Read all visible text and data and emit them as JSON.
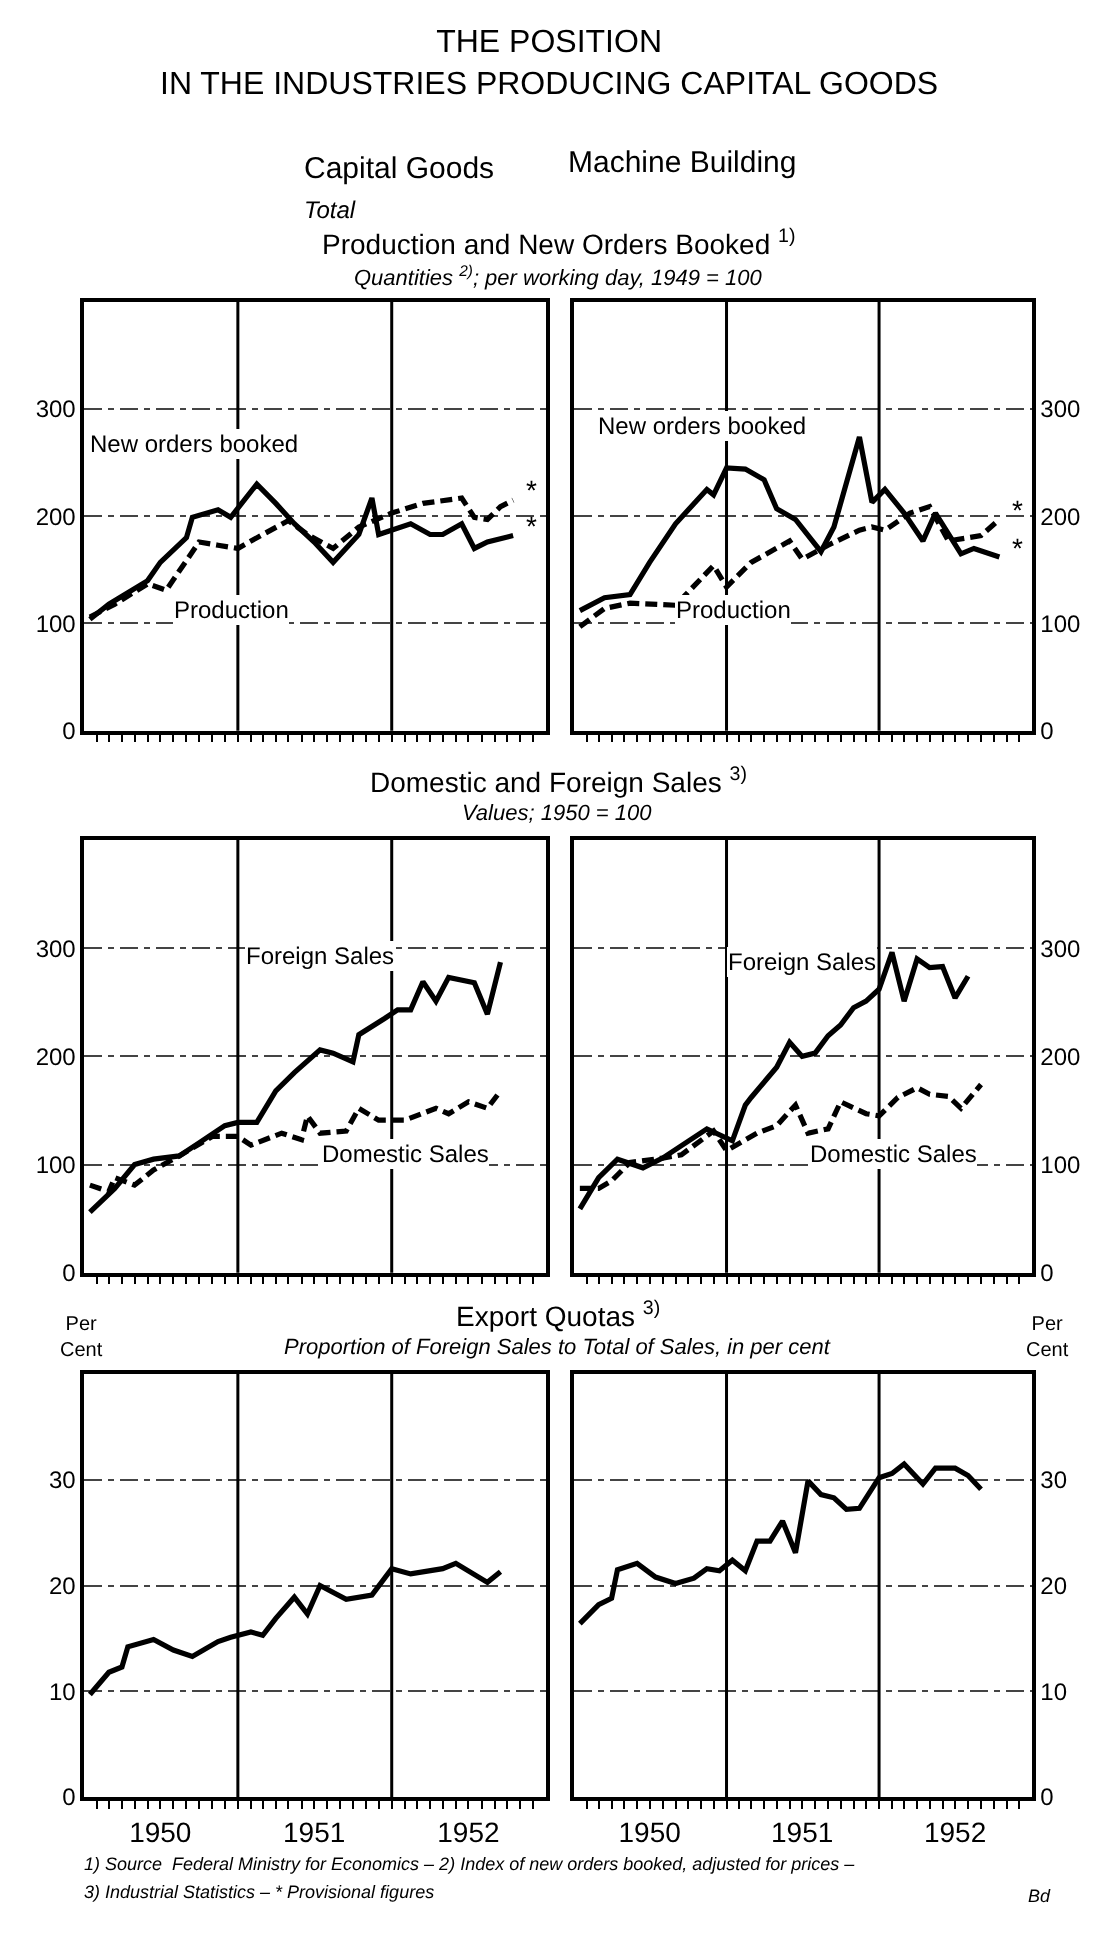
{
  "chart_data": [
    {
      "type": "other",
      "title": "THE POSITION\nIN THE INDUSTRIES PRODUCING CAPITAL GOODS",
      "annotations": [
        "Capital Goods",
        "Total",
        "Machine Building"
      ]
    },
    {
      "type": "line",
      "title": "Production and New Orders Booked $^{1)}$",
      "subtitle": "Quantities $^{2)}$; per working day, 1949 = 100",
      "grid": "y",
      "tick_labels": "y",
      "xlim": [
        "1950-01-01",
        "1953-01-01"
      ],
      "ylim": [
        0,
        400
      ],
      "yticks": [
        0,
        100,
        200,
        300
      ],
      "xticks": [
        {
          "value": "1950-02-01",
          "label": null
        },
        {
          "value": "1950-03-01",
          "label": null
        },
        {
          "value": "1950-04-01",
          "label": null
        },
        {
          "value": "1950-05-01",
          "label": null
        },
        {
          "value": "1950-06-01",
          "label": null
        },
        {
          "value": "1950-07-01",
          "label": null
        },
        {
          "value": "1950-08-01",
          "label": null
        },
        {
          "value": "1950-09-01",
          "label": null
        },
        {
          "value": "1950-10-01",
          "label": null
        },
        {
          "value": "1950-11-01",
          "label": null
        },
        {
          "value": "1950-12-01",
          "label": null
        },
        {
          "value": "1951-01-01",
          "label": null
        },
        {
          "value": "1951-02-01",
          "label": null
        },
        {
          "value": "1951-03-01",
          "label": null
        },
        {
          "value": "1951-04-01",
          "label": null
        },
        {
          "value": "1951-05-01",
          "label": null
        },
        {
          "value": "1951-06-01",
          "label": null
        },
        {
          "value": "1951-07-01",
          "label": null
        },
        {
          "value": "1951-08-01",
          "label": null
        },
        {
          "value": "1951-09-01",
          "label": null
        },
        {
          "value": "1951-10-01",
          "label": null
        },
        {
          "value": "1951-11-01",
          "label": null
        },
        {
          "value": "1951-12-01",
          "label": null
        },
        {
          "value": "1952-01-01",
          "label": null
        },
        {
          "value": "1952-02-01",
          "label": null
        },
        {
          "value": "1952-03-01",
          "label": null
        },
        {
          "value": "1952-04-01",
          "label": null
        },
        {
          "value": "1952-05-01",
          "label": null
        },
        {
          "value": "1952-06-01",
          "label": null
        },
        {
          "value": "1952-07-01",
          "label": null
        },
        {
          "value": "1952-08-01",
          "label": null
        },
        {
          "value": "1952-09-01",
          "label": null
        },
        {
          "value": "1952-10-01",
          "label": null
        },
        {
          "value": "1952-11-01",
          "label": null
        },
        {
          "value": "1952-12-01",
          "label": null
        }
      ],
      "ref_lines": [
        {
          "axis": "x",
          "value": "1951-01-01",
          "color": "#000000"
        },
        {
          "axis": "x",
          "value": "1952-01-01",
          "color": "#000000"
        }
      ],
      "series": [
        {
          "name": "New orders booked",
          "color": "#000000",
          "line_style": "solid",
          "x": [
            "1950-01-15",
            "1950-03-01",
            "1950-06-01",
            "1950-07-01",
            "1950-09-01",
            "1950-09-15",
            "1950-11-15",
            "1950-12-15",
            "1951-02-15",
            "1951-04-01",
            "1951-05-15",
            "1951-07-01",
            "1951-08-15",
            "1951-10-15",
            "1951-11-15",
            "1951-12-01",
            "1952-02-15",
            "1952-04-01",
            "1952-05-01",
            "1952-06-15",
            "1952-07-15",
            "1952-08-15",
            "1952-10-15"
          ],
          "values": [
            104,
            118,
            140,
            157,
            180,
            199,
            206,
            199,
            230,
            212,
            193,
            176,
            157,
            183,
            217,
            183,
            193,
            183,
            183,
            193,
            170,
            176,
            182
          ]
        },
        {
          "name": "Production",
          "color": "#000000",
          "line_style": "dashed",
          "x": [
            "1950-01-15",
            "1950-03-15",
            "1950-06-01",
            "1950-07-15",
            "1950-10-01",
            "1950-11-15",
            "1951-01-01",
            "1951-03-01",
            "1951-05-01",
            "1951-06-15",
            "1951-08-15",
            "1951-10-15",
            "1952-01-01",
            "1952-03-15",
            "1952-06-15",
            "1952-07-15",
            "1952-08-15",
            "1952-09-15",
            "1952-10-15"
          ],
          "values": [
            106,
            118,
            137,
            131,
            176,
            173,
            170,
            183,
            196,
            183,
            170,
            190,
            203,
            212,
            217,
            199,
            197,
            209,
            215
          ]
        }
      ],
      "annotations": [
        {
          "text": "*",
          "x": "1952-10-15",
          "y": 215
        },
        {
          "text": "*",
          "x": "1952-10-15",
          "y": 182
        }
      ]
    },
    {
      "type": "line",
      "grid": "y",
      "tick_labels": "y",
      "xlim": [
        "1950-01-01",
        "1953-01-01"
      ],
      "ylim": [
        0,
        400
      ],
      "yticks": [
        0,
        100,
        200,
        300
      ],
      "xticks": [
        {
          "value": "1950-02-01",
          "label": null
        },
        {
          "value": "1950-03-01",
          "label": null
        },
        {
          "value": "1950-04-01",
          "label": null
        },
        {
          "value": "1950-05-01",
          "label": null
        },
        {
          "value": "1950-06-01",
          "label": null
        },
        {
          "value": "1950-07-01",
          "label": null
        },
        {
          "value": "1950-08-01",
          "label": null
        },
        {
          "value": "1950-09-01",
          "label": null
        },
        {
          "value": "1950-10-01",
          "label": null
        },
        {
          "value": "1950-11-01",
          "label": null
        },
        {
          "value": "1950-12-01",
          "label": null
        },
        {
          "value": "1951-01-01",
          "label": null
        },
        {
          "value": "1951-02-01",
          "label": null
        },
        {
          "value": "1951-03-01",
          "label": null
        },
        {
          "value": "1951-04-01",
          "label": null
        },
        {
          "value": "1951-05-01",
          "label": null
        },
        {
          "value": "1951-06-01",
          "label": null
        },
        {
          "value": "1951-07-01",
          "label": null
        },
        {
          "value": "1951-08-01",
          "label": null
        },
        {
          "value": "1951-09-01",
          "label": null
        },
        {
          "value": "1951-10-01",
          "label": null
        },
        {
          "value": "1951-11-01",
          "label": null
        },
        {
          "value": "1951-12-01",
          "label": null
        },
        {
          "value": "1952-01-01",
          "label": null
        },
        {
          "value": "1952-02-01",
          "label": null
        },
        {
          "value": "1952-03-01",
          "label": null
        },
        {
          "value": "1952-04-01",
          "label": null
        },
        {
          "value": "1952-05-01",
          "label": null
        },
        {
          "value": "1952-06-01",
          "label": null
        },
        {
          "value": "1952-07-01",
          "label": null
        },
        {
          "value": "1952-08-01",
          "label": null
        },
        {
          "value": "1952-09-01",
          "label": null
        },
        {
          "value": "1952-10-01",
          "label": null
        },
        {
          "value": "1952-11-01",
          "label": null
        },
        {
          "value": "1952-12-01",
          "label": null
        }
      ],
      "ref_lines": [
        {
          "axis": "x",
          "value": "1951-01-01",
          "color": "#000000"
        },
        {
          "axis": "x",
          "value": "1952-01-01",
          "color": "#000000"
        }
      ],
      "series": [
        {
          "name": "New orders booked",
          "color": "#000000",
          "line_style": "solid",
          "x": [
            "1950-01-15",
            "1950-03-15",
            "1950-05-15",
            "1950-07-01",
            "1950-09-01",
            "1950-11-15",
            "1950-12-01",
            "1951-01-01",
            "1951-02-15",
            "1951-04-01",
            "1951-05-01",
            "1951-06-15",
            "1951-08-15",
            "1951-09-15",
            "1951-11-15",
            "1951-12-15",
            "1952-01-15",
            "1952-03-01",
            "1952-04-15",
            "1952-05-15",
            "1952-07-15",
            "1952-08-15",
            "1952-10-15"
          ],
          "values": [
            112,
            124,
            127,
            157,
            193,
            225,
            220,
            245,
            244,
            234,
            207,
            197,
            167,
            190,
            274,
            213,
            225,
            203,
            177,
            203,
            165,
            170,
            162
          ]
        },
        {
          "name": "Production",
          "color": "#000000",
          "line_style": "dashed",
          "x": [
            "1950-01-15",
            "1950-03-15",
            "1950-05-15",
            "1950-09-01",
            "1950-12-01",
            "1951-01-01",
            "1951-03-01",
            "1951-06-01",
            "1951-07-01",
            "1951-09-01",
            "1951-11-15",
            "1951-12-15",
            "1952-01-15",
            "1952-03-15",
            "1952-05-01",
            "1952-06-15",
            "1952-09-01",
            "1952-10-15"
          ],
          "values": [
            97,
            114,
            119,
            117,
            154,
            134,
            157,
            177,
            160,
            173,
            187,
            190,
            187,
            203,
            209,
            177,
            182,
            197
          ]
        }
      ],
      "annotations": [
        {
          "text": "*",
          "x": "1952-10-15",
          "y": 197
        },
        {
          "text": "*",
          "x": "1952-10-15",
          "y": 162
        }
      ]
    },
    {
      "type": "line",
      "title": "Domestic and Foreign Sales $^{3)}$",
      "subtitle": "Values; 1950 = 100",
      "grid": "y",
      "tick_labels": "y",
      "xlim": [
        "1950-01-01",
        "1953-01-01"
      ],
      "ylim": [
        0,
        400
      ],
      "yticks": [
        0,
        100,
        200,
        300
      ],
      "xticks": [
        {
          "value": "1950-02-01",
          "label": null
        },
        {
          "value": "1950-03-01",
          "label": null
        },
        {
          "value": "1950-04-01",
          "label": null
        },
        {
          "value": "1950-05-01",
          "label": null
        },
        {
          "value": "1950-06-01",
          "label": null
        },
        {
          "value": "1950-07-01",
          "label": null
        },
        {
          "value": "1950-08-01",
          "label": null
        },
        {
          "value": "1950-09-01",
          "label": null
        },
        {
          "value": "1950-10-01",
          "label": null
        },
        {
          "value": "1950-11-01",
          "label": null
        },
        {
          "value": "1950-12-01",
          "label": null
        },
        {
          "value": "1951-01-01",
          "label": null
        },
        {
          "value": "1951-02-01",
          "label": null
        },
        {
          "value": "1951-03-01",
          "label": null
        },
        {
          "value": "1951-04-01",
          "label": null
        },
        {
          "value": "1951-05-01",
          "label": null
        },
        {
          "value": "1951-06-01",
          "label": null
        },
        {
          "value": "1951-07-01",
          "label": null
        },
        {
          "value": "1951-08-01",
          "label": null
        },
        {
          "value": "1951-09-01",
          "label": null
        },
        {
          "value": "1951-10-01",
          "label": null
        },
        {
          "value": "1951-11-01",
          "label": null
        },
        {
          "value": "1951-12-01",
          "label": null
        },
        {
          "value": "1952-01-01",
          "label": null
        },
        {
          "value": "1952-02-01",
          "label": null
        },
        {
          "value": "1952-03-01",
          "label": null
        },
        {
          "value": "1952-04-01",
          "label": null
        },
        {
          "value": "1952-05-01",
          "label": null
        },
        {
          "value": "1952-06-01",
          "label": null
        },
        {
          "value": "1952-07-01",
          "label": null
        },
        {
          "value": "1952-08-01",
          "label": null
        },
        {
          "value": "1952-09-01",
          "label": null
        },
        {
          "value": "1952-10-01",
          "label": null
        },
        {
          "value": "1952-11-01",
          "label": null
        },
        {
          "value": "1952-12-01",
          "label": null
        }
      ],
      "ref_lines": [
        {
          "axis": "x",
          "value": "1951-01-01",
          "color": "#000000"
        },
        {
          "axis": "x",
          "value": "1952-01-01",
          "color": "#000000"
        }
      ],
      "series": [
        {
          "name": "Foreign Sales",
          "color": "#000000",
          "line_style": "solid",
          "x": [
            "1950-01-15",
            "1950-03-15",
            "1950-05-01",
            "1950-06-15",
            "1950-08-15",
            "1950-10-01",
            "1950-12-01",
            "1951-01-01",
            "1951-02-15",
            "1951-04-01",
            "1951-05-15",
            "1951-07-15",
            "1951-08-15",
            "1951-10-01",
            "1951-10-15",
            "1951-12-15",
            "1952-01-15",
            "1952-02-15",
            "1952-03-15",
            "1952-04-15",
            "1952-05-15",
            "1952-07-15",
            "1952-08-15",
            "1952-09-15"
          ],
          "values": [
            56,
            78,
            100,
            105,
            108,
            120,
            136,
            139,
            139,
            168,
            185,
            206,
            203,
            195,
            220,
            235,
            243,
            243,
            269,
            251,
            273,
            268,
            239,
            287
          ]
        },
        {
          "name": "Domestic Sales",
          "color": "#000000",
          "line_style": "dashed",
          "x": [
            "1950-01-15",
            "1950-03-01",
            "1950-03-15",
            "1950-05-01",
            "1950-06-15",
            "1950-08-15",
            "1950-11-01",
            "1951-01-01",
            "1951-02-01",
            "1951-04-15",
            "1951-06-01",
            "1951-06-15",
            "1951-07-15",
            "1951-09-15",
            "1951-10-15",
            "1951-12-01",
            "1952-02-01",
            "1952-04-15",
            "1952-05-15",
            "1952-07-01",
            "1952-08-15",
            "1952-09-15"
          ],
          "values": [
            81,
            75,
            88,
            81,
            95,
            108,
            126,
            126,
            118,
            129,
            123,
            145,
            129,
            131,
            152,
            141,
            141,
            152,
            147,
            158,
            152,
            168
          ]
        }
      ]
    },
    {
      "type": "line",
      "grid": "y",
      "tick_labels": "y",
      "xlim": [
        "1950-01-01",
        "1953-01-01"
      ],
      "ylim": [
        0,
        400
      ],
      "yticks": [
        0,
        100,
        200,
        300
      ],
      "xticks": [
        {
          "value": "1950-02-01",
          "label": null
        },
        {
          "value": "1950-03-01",
          "label": null
        },
        {
          "value": "1950-04-01",
          "label": null
        },
        {
          "value": "1950-05-01",
          "label": null
        },
        {
          "value": "1950-06-01",
          "label": null
        },
        {
          "value": "1950-07-01",
          "label": null
        },
        {
          "value": "1950-08-01",
          "label": null
        },
        {
          "value": "1950-09-01",
          "label": null
        },
        {
          "value": "1950-10-01",
          "label": null
        },
        {
          "value": "1950-11-01",
          "label": null
        },
        {
          "value": "1950-12-01",
          "label": null
        },
        {
          "value": "1951-01-01",
          "label": null
        },
        {
          "value": "1951-02-01",
          "label": null
        },
        {
          "value": "1951-03-01",
          "label": null
        },
        {
          "value": "1951-04-01",
          "label": null
        },
        {
          "value": "1951-05-01",
          "label": null
        },
        {
          "value": "1951-06-01",
          "label": null
        },
        {
          "value": "1951-07-01",
          "label": null
        },
        {
          "value": "1951-08-01",
          "label": null
        },
        {
          "value": "1951-09-01",
          "label": null
        },
        {
          "value": "1951-10-01",
          "label": null
        },
        {
          "value": "1951-11-01",
          "label": null
        },
        {
          "value": "1951-12-01",
          "label": null
        },
        {
          "value": "1952-01-01",
          "label": null
        },
        {
          "value": "1952-02-01",
          "label": null
        },
        {
          "value": "1952-03-01",
          "label": null
        },
        {
          "value": "1952-04-01",
          "label": null
        },
        {
          "value": "1952-05-01",
          "label": null
        },
        {
          "value": "1952-06-01",
          "label": null
        },
        {
          "value": "1952-07-01",
          "label": null
        },
        {
          "value": "1952-08-01",
          "label": null
        },
        {
          "value": "1952-09-01",
          "label": null
        },
        {
          "value": "1952-10-01",
          "label": null
        },
        {
          "value": "1952-11-01",
          "label": null
        },
        {
          "value": "1952-12-01",
          "label": null
        }
      ],
      "ref_lines": [
        {
          "axis": "x",
          "value": "1951-01-01",
          "color": "#000000"
        },
        {
          "axis": "x",
          "value": "1952-01-01",
          "color": "#000000"
        }
      ],
      "series": [
        {
          "name": "Foreign Sales",
          "color": "#000000",
          "line_style": "solid",
          "x": [
            "1950-01-15",
            "1950-03-01",
            "1950-04-15",
            "1950-06-15",
            "1950-08-01",
            "1950-11-15",
            "1951-01-15",
            "1951-02-15",
            "1951-03-01",
            "1951-05-01",
            "1951-06-01",
            "1951-07-01",
            "1951-08-01",
            "1951-09-01",
            "1951-10-01",
            "1951-11-01",
            "1951-12-01",
            "1952-01-01",
            "1952-02-01",
            "1952-03-01",
            "1952-04-01",
            "1952-05-01",
            "1952-06-01",
            "1952-07-01",
            "1952-08-01"
          ],
          "values": [
            59,
            88,
            105,
            97,
            106,
            133,
            122,
            155,
            162,
            190,
            213,
            200,
            203,
            219,
            229,
            245,
            251,
            262,
            296,
            251,
            290,
            282,
            283,
            254,
            274
          ]
        },
        {
          "name": "Domestic Sales",
          "color": "#000000",
          "line_style": "dashed",
          "x": [
            "1950-01-15",
            "1950-03-01",
            "1950-04-01",
            "1950-05-15",
            "1950-08-01",
            "1950-09-15",
            "1950-12-01",
            "1951-01-01",
            "1951-03-15",
            "1951-05-01",
            "1951-06-15",
            "1951-07-15",
            "1951-09-01",
            "1951-10-01",
            "1951-12-01",
            "1952-01-01",
            "1952-02-15",
            "1952-04-01",
            "1952-05-01",
            "1952-06-15",
            "1952-07-15",
            "1952-09-01"
          ],
          "values": [
            78,
            78,
            85,
            102,
            106,
            109,
            131,
            113,
            129,
            136,
            155,
            129,
            133,
            158,
            147,
            145,
            162,
            171,
            165,
            163,
            152,
            174
          ]
        }
      ]
    },
    {
      "type": "line",
      "title": "Export Quotas $^{3)}$",
      "subtitle": "Proportion of Foreign Sales to Total of Sales, in per cent",
      "ylabel": "Per\nCent",
      "grid": "y",
      "xlim": [
        "1950-01-01",
        "1953-01-01"
      ],
      "ylim": [
        0,
        40
      ],
      "yticks": [
        0,
        10,
        20,
        30
      ],
      "xticks": [
        {
          "value": "1950-02-01",
          "label": null
        },
        {
          "value": "1950-03-01",
          "label": null
        },
        {
          "value": "1950-04-01",
          "label": null
        },
        {
          "value": "1950-05-01",
          "label": null
        },
        {
          "value": "1950-06-01",
          "label": null
        },
        {
          "value": "1950-07-01",
          "label": "1950"
        },
        {
          "value": "1950-08-01",
          "label": null
        },
        {
          "value": "1950-09-01",
          "label": null
        },
        {
          "value": "1950-10-01",
          "label": null
        },
        {
          "value": "1950-11-01",
          "label": null
        },
        {
          "value": "1950-12-01",
          "label": null
        },
        {
          "value": "1951-01-01",
          "label": null
        },
        {
          "value": "1951-02-01",
          "label": null
        },
        {
          "value": "1951-03-01",
          "label": null
        },
        {
          "value": "1951-04-01",
          "label": null
        },
        {
          "value": "1951-05-01",
          "label": null
        },
        {
          "value": "1951-06-01",
          "label": null
        },
        {
          "value": "1951-07-01",
          "label": "1951"
        },
        {
          "value": "1951-08-01",
          "label": null
        },
        {
          "value": "1951-09-01",
          "label": null
        },
        {
          "value": "1951-10-01",
          "label": null
        },
        {
          "value": "1951-11-01",
          "label": null
        },
        {
          "value": "1951-12-01",
          "label": null
        },
        {
          "value": "1952-01-01",
          "label": null
        },
        {
          "value": "1952-02-01",
          "label": null
        },
        {
          "value": "1952-03-01",
          "label": null
        },
        {
          "value": "1952-04-01",
          "label": null
        },
        {
          "value": "1952-05-01",
          "label": null
        },
        {
          "value": "1952-06-01",
          "label": null
        },
        {
          "value": "1952-07-01",
          "label": "1952"
        },
        {
          "value": "1952-08-01",
          "label": null
        },
        {
          "value": "1952-09-01",
          "label": null
        },
        {
          "value": "1952-10-01",
          "label": null
        },
        {
          "value": "1952-11-01",
          "label": null
        },
        {
          "value": "1952-12-01",
          "label": null
        }
      ],
      "ref_lines": [
        {
          "axis": "x",
          "value": "1951-01-01",
          "color": "#000000"
        },
        {
          "axis": "x",
          "value": "1952-01-01",
          "color": "#000000"
        }
      ],
      "series": [
        {
          "color": "#000000",
          "line_style": "solid",
          "x": [
            "1950-01-15",
            "1950-03-01",
            "1950-04-01",
            "1950-04-15",
            "1950-06-15",
            "1950-08-01",
            "1950-09-15",
            "1950-11-15",
            "1950-12-15",
            "1951-02-01",
            "1951-03-01",
            "1951-04-01",
            "1951-05-15",
            "1951-06-15",
            "1951-07-15",
            "1951-09-15",
            "1951-11-15",
            "1952-01-01",
            "1952-02-15",
            "1952-05-01",
            "1952-06-01",
            "1952-08-15",
            "1952-09-15"
          ],
          "values": [
            9.7,
            11.8,
            12.3,
            14.2,
            14.9,
            13.9,
            13.3,
            14.7,
            15.1,
            15.6,
            15.3,
            16.9,
            18.9,
            17.3,
            20.0,
            18.7,
            19.1,
            21.6,
            21.1,
            21.6,
            22.1,
            20.3,
            21.3
          ]
        }
      ]
    },
    {
      "type": "line",
      "ylabel": "Per\nCent",
      "grid": "y",
      "xlim": [
        "1950-01-01",
        "1953-01-01"
      ],
      "ylim": [
        0,
        40
      ],
      "yticks": [
        0,
        10,
        20,
        30
      ],
      "xticks": [
        {
          "value": "1950-02-01",
          "label": null
        },
        {
          "value": "1950-03-01",
          "label": null
        },
        {
          "value": "1950-04-01",
          "label": null
        },
        {
          "value": "1950-05-01",
          "label": null
        },
        {
          "value": "1950-06-01",
          "label": null
        },
        {
          "value": "1950-07-01",
          "label": "1950"
        },
        {
          "value": "1950-08-01",
          "label": null
        },
        {
          "value": "1950-09-01",
          "label": null
        },
        {
          "value": "1950-10-01",
          "label": null
        },
        {
          "value": "1950-11-01",
          "label": null
        },
        {
          "value": "1950-12-01",
          "label": null
        },
        {
          "value": "1951-01-01",
          "label": null
        },
        {
          "value": "1951-02-01",
          "label": null
        },
        {
          "value": "1951-03-01",
          "label": null
        },
        {
          "value": "1951-04-01",
          "label": null
        },
        {
          "value": "1951-05-01",
          "label": null
        },
        {
          "value": "1951-06-01",
          "label": null
        },
        {
          "value": "1951-07-01",
          "label": "1951"
        },
        {
          "value": "1951-08-01",
          "label": null
        },
        {
          "value": "1951-09-01",
          "label": null
        },
        {
          "value": "1951-10-01",
          "label": null
        },
        {
          "value": "1951-11-01",
          "label": null
        },
        {
          "value": "1951-12-01",
          "label": null
        },
        {
          "value": "1952-01-01",
          "label": null
        },
        {
          "value": "1952-02-01",
          "label": null
        },
        {
          "value": "1952-03-01",
          "label": null
        },
        {
          "value": "1952-04-01",
          "label": null
        },
        {
          "value": "1952-05-01",
          "label": null
        },
        {
          "value": "1952-06-01",
          "label": null
        },
        {
          "value": "1952-07-01",
          "label": "1952"
        },
        {
          "value": "1952-08-01",
          "label": null
        },
        {
          "value": "1952-09-01",
          "label": null
        },
        {
          "value": "1952-10-01",
          "label": null
        },
        {
          "value": "1952-11-01",
          "label": null
        },
        {
          "value": "1952-12-01",
          "label": null
        }
      ],
      "ref_lines": [
        {
          "axis": "x",
          "value": "1951-01-01",
          "color": "#000000"
        },
        {
          "axis": "x",
          "value": "1952-01-01",
          "color": "#000000"
        }
      ],
      "series": [
        {
          "color": "#000000",
          "line_style": "solid",
          "x": [
            "1950-01-15",
            "1950-03-01",
            "1950-04-01",
            "1950-04-15",
            "1950-06-01",
            "1950-07-15",
            "1950-09-01",
            "1950-10-15",
            "1950-11-15",
            "1950-12-15",
            "1951-01-15",
            "1951-02-15",
            "1951-03-15",
            "1951-04-15",
            "1951-05-15",
            "1951-06-15",
            "1951-07-15",
            "1951-08-15",
            "1951-09-15",
            "1951-10-15",
            "1951-11-15",
            "1952-01-01",
            "1952-02-01",
            "1952-03-01",
            "1952-04-15",
            "1952-05-15",
            "1952-07-01",
            "1952-08-01",
            "1952-09-01"
          ],
          "values": [
            16.4,
            18.2,
            18.8,
            21.5,
            22.1,
            20.8,
            20.2,
            20.7,
            21.6,
            21.4,
            22.4,
            21.4,
            24.2,
            24.2,
            26.1,
            23.1,
            29.9,
            28.6,
            28.3,
            27.2,
            27.3,
            30.2,
            30.6,
            31.5,
            29.6,
            31.1,
            31.1,
            30.4,
            29.1
          ]
        }
      ]
    },
    {
      "type": "other",
      "annotations": [
        "1) Source  Federal Ministry for Economics – 2) Index of new orders booked, adjusted for prices –",
        "3) Industrial Statistics – * Provisional figures",
        "Bd"
      ]
    }
  ]
}
